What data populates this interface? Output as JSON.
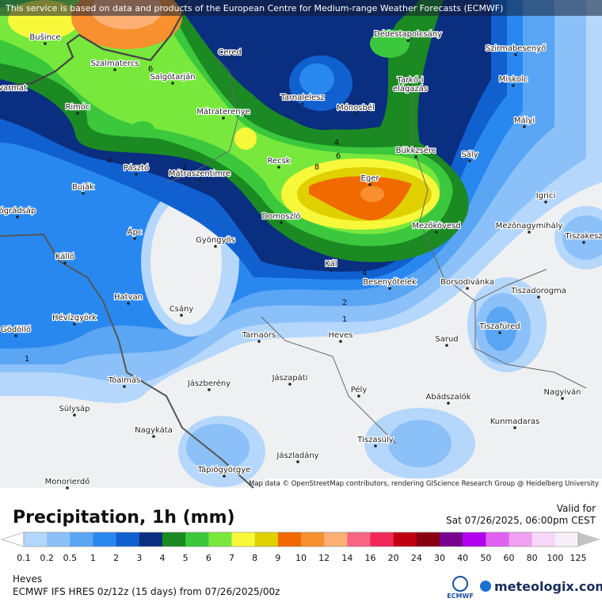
{
  "header": {
    "notice": "This service is based on data and products of the European Centre for Medium-range Weather Forecasts (ECMWF)"
  },
  "map": {
    "places": [
      "Bušince",
      "Szalmatercs",
      "Salgótarján",
      "Cered",
      "Dédestapolcsány",
      "Szirmabesenyő",
      "Miskolc",
      "Tarkő-i",
      "elágazás",
      "Rimóc",
      "Mátraterenye",
      "Tarnalelesz",
      "Mónosbél",
      "Mályi",
      "Bükkzsérc",
      "Sály",
      "Recsk",
      "Pásztó",
      "Mátraszentimre",
      "Eger",
      "Igrici",
      "Buják",
      "ógrádsáp",
      "Domoszló",
      "Mezőkövesd",
      "Mezőnagymihály",
      "Tiszakesz",
      "Ápc",
      "Gyöngyös",
      "Kálló",
      "Kál",
      "Besenyőtelek",
      "Borsodivánka",
      "Tiszadorogma",
      "Hatvan",
      "Csány",
      "Hévízgyörk",
      "Tiszafüred",
      "Gödöllő",
      "Tarnaörs",
      "Heves",
      "Sarud",
      "Tóalmás",
      "Jászberény",
      "Jászapáti",
      "Pély",
      "Nagyiván",
      "Abádszalók",
      "Sülysáp",
      "Kunmadaras",
      "Nagykáta",
      "Tiszasüly",
      "Jászladány",
      "Tápiógyörgye",
      "Monorierdő",
      "varmat"
    ],
    "contour_labels": [
      "6",
      "4",
      "8",
      "6",
      "4",
      "4",
      "2",
      "1",
      "1",
      "2"
    ],
    "attribution": "Map data © OpenStreetMap contributors, rendering GIScience Research Group @ Heidelberg University"
  },
  "legend": {
    "title": "Precipitation, 1h (mm)",
    "valid_label": "Valid for",
    "valid_time": "Sat 07/26/2025, 06:00pm CEST",
    "labels": [
      "0.1",
      "0.2",
      "0.5",
      "1",
      "2",
      "3",
      "4",
      "5",
      "6",
      "7",
      "8",
      "9",
      "10",
      "12",
      "14",
      "16",
      "20",
      "24",
      "30",
      "40",
      "50",
      "60",
      "80",
      "100",
      "125"
    ],
    "under_color": "#ffffff",
    "over_color": "#c4c4c4",
    "colors": [
      "#b4d7fb",
      "#8cc0f8",
      "#5aa5f4",
      "#2888f0",
      "#1060d0",
      "#0a2e80",
      "#1b8a22",
      "#3cc83c",
      "#78e83c",
      "#f8f83a",
      "#e0d000",
      "#f06a00",
      "#f89030",
      "#fcb074",
      "#f86484",
      "#f02858",
      "#c00010",
      "#880010",
      "#780090",
      "#b400f0",
      "#e060f0",
      "#f0a0f0",
      "#f8d8f8",
      "#f8f0f8"
    ]
  },
  "footer": {
    "region": "Heves",
    "model": "ECMWF IFS HRES 0z/12z (15 days) from  07/26/2025/00z",
    "ecmwf": "ECMWF",
    "brand": "meteologix.com"
  }
}
